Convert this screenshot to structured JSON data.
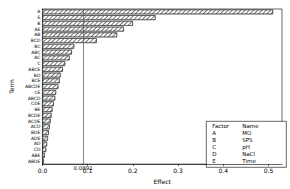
{
  "chart_data": {
    "type": "bar",
    "orientation": "horizontal",
    "x_label": "Effect",
    "y_label": "Term",
    "categories": [
      "A",
      "E",
      "B",
      "AE",
      "AB",
      "BCD",
      "BC",
      "ABC",
      "AC",
      "C",
      "ABCE",
      "BD",
      "BCE",
      "ABCDE",
      "CE",
      "ABCD",
      "CDE",
      "BE",
      "BCDE",
      "ACDE",
      "ACD",
      "BDE",
      "ADE",
      "AD",
      "CD",
      "ABE",
      "ABDE"
    ],
    "values": [
      0.51,
      0.25,
      0.2,
      0.18,
      0.165,
      0.12,
      0.07,
      0.065,
      0.06,
      0.05,
      0.045,
      0.04,
      0.038,
      0.035,
      0.03,
      0.028,
      0.025,
      0.022,
      0.02,
      0.018,
      0.016,
      0.014,
      0.012,
      0.01,
      0.008,
      0.005,
      0.003
    ],
    "color": "#ffffff",
    "xlim": [
      0,
      0.53
    ],
    "xticks": [
      {
        "value": 0,
        "label": "0.0"
      },
      0.1,
      0.2,
      0.3,
      0.4,
      0.5
    ],
    "reference_line": {
      "value": 0.0891,
      "label": "0.0891"
    },
    "legend_table": {
      "header": [
        "Factor",
        "Name"
      ],
      "rows": [
        [
          "A",
          "MO"
        ],
        [
          "B",
          "SPS"
        ],
        [
          "C",
          "pH"
        ],
        [
          "D",
          "NaCl"
        ],
        [
          "E",
          "Time"
        ]
      ]
    },
    "grid": false
  }
}
